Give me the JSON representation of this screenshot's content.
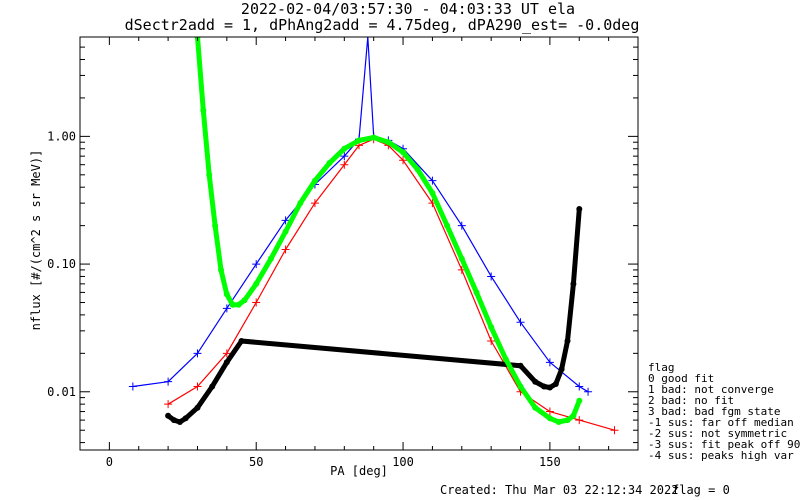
{
  "chart_data": {
    "type": "line",
    "title": "2022-02-04/03:57:30 - 04:03:33 UT ela",
    "subtitle": "dSectr2add = 1, dPhAng2add = 4.75deg, dPA290_est=  -0.0deg",
    "xlabel": "PA [deg]",
    "ylabel": "nflux [#/(cm^2 s sr MeV)]",
    "xlim": [
      -10,
      180
    ],
    "ylim": [
      0.0035,
      6.0
    ],
    "yscale": "log",
    "xticks": [
      "0",
      "50",
      "100",
      "150"
    ],
    "xtick_values": [
      0,
      50,
      100,
      150
    ],
    "yticks": [
      "0.01",
      "0.10",
      "1.00"
    ],
    "ytick_values": [
      0.01,
      0.1,
      1.0
    ],
    "grid": false,
    "series": [
      {
        "name": "",
        "color": "#00ff00",
        "x": [
          30,
          32,
          34,
          36,
          38,
          40,
          42,
          44,
          46,
          50,
          55,
          60,
          65,
          70,
          75,
          80,
          85,
          90,
          95,
          100,
          105,
          110,
          115,
          120,
          125,
          130,
          135,
          140,
          145,
          150,
          153,
          156,
          158,
          160
        ],
        "y": [
          6.0,
          1.6,
          0.5,
          0.2,
          0.09,
          0.058,
          0.048,
          0.048,
          0.052,
          0.07,
          0.11,
          0.18,
          0.3,
          0.45,
          0.62,
          0.8,
          0.93,
          0.98,
          0.9,
          0.75,
          0.55,
          0.36,
          0.2,
          0.11,
          0.06,
          0.032,
          0.018,
          0.011,
          0.0075,
          0.0062,
          0.0058,
          0.006,
          0.0065,
          0.0085
        ]
      },
      {
        "name": "",
        "color": "#000000",
        "x": [
          20,
          22,
          24,
          26,
          30,
          35,
          40,
          45,
          140,
          145,
          148,
          150,
          152,
          154,
          156,
          158,
          160
        ],
        "y": [
          0.0065,
          0.006,
          0.0058,
          0.0062,
          0.0075,
          0.011,
          0.017,
          0.025,
          0.016,
          0.012,
          0.011,
          0.0108,
          0.0115,
          0.015,
          0.025,
          0.07,
          0.27
        ]
      },
      {
        "name": "",
        "color": "#0000ff",
        "x": [
          8,
          20,
          30,
          40,
          50,
          60,
          70,
          80,
          85,
          88,
          90,
          95,
          100,
          110,
          120,
          130,
          140,
          150,
          160,
          163
        ],
        "y": [
          0.011,
          0.012,
          0.02,
          0.045,
          0.1,
          0.22,
          0.42,
          0.7,
          0.95,
          6.0,
          1.0,
          0.93,
          0.8,
          0.45,
          0.2,
          0.08,
          0.035,
          0.017,
          0.011,
          0.01
        ]
      },
      {
        "name": "",
        "color": "#ff0000",
        "x": [
          20,
          30,
          40,
          50,
          60,
          70,
          80,
          85,
          90,
          95,
          100,
          110,
          120,
          130,
          140,
          150,
          160,
          172
        ],
        "y": [
          0.008,
          0.011,
          0.02,
          0.05,
          0.13,
          0.3,
          0.6,
          0.85,
          0.95,
          0.85,
          0.65,
          0.3,
          0.09,
          0.025,
          0.01,
          0.007,
          0.006,
          0.005
        ]
      }
    ]
  },
  "legend": {
    "header": "flag",
    "entries": [
      " 0 good fit",
      " 1 bad: not converge",
      " 2 bad: no fit",
      " 3 bad: bad fgm state",
      "-1 sus: far off median",
      "-2 sus: not symmetric",
      "-3 sus: fit peak off 90",
      "-4 sus: peaks high var"
    ]
  },
  "footer": {
    "created": "Created: Thu Mar 03 22:12:34 2022",
    "flag": "flag = 0"
  }
}
